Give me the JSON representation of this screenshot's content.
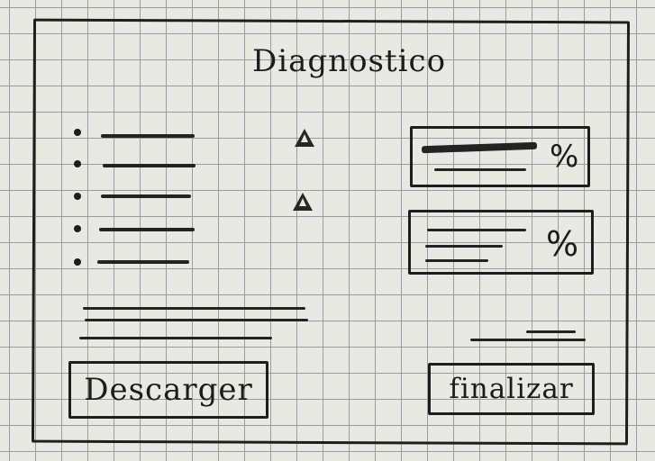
{
  "title": "Diagnostico",
  "cards": [
    {
      "percent": "%"
    },
    {
      "percent": "%"
    }
  ],
  "buttons": {
    "download_label": "Descarger",
    "finish_label": "finalizar"
  },
  "icons": {
    "warning": "warning-triangle"
  },
  "colors": {
    "ink": "#1c1c1c",
    "paper": "#e9e9e4",
    "grid": "#9c9c98"
  }
}
